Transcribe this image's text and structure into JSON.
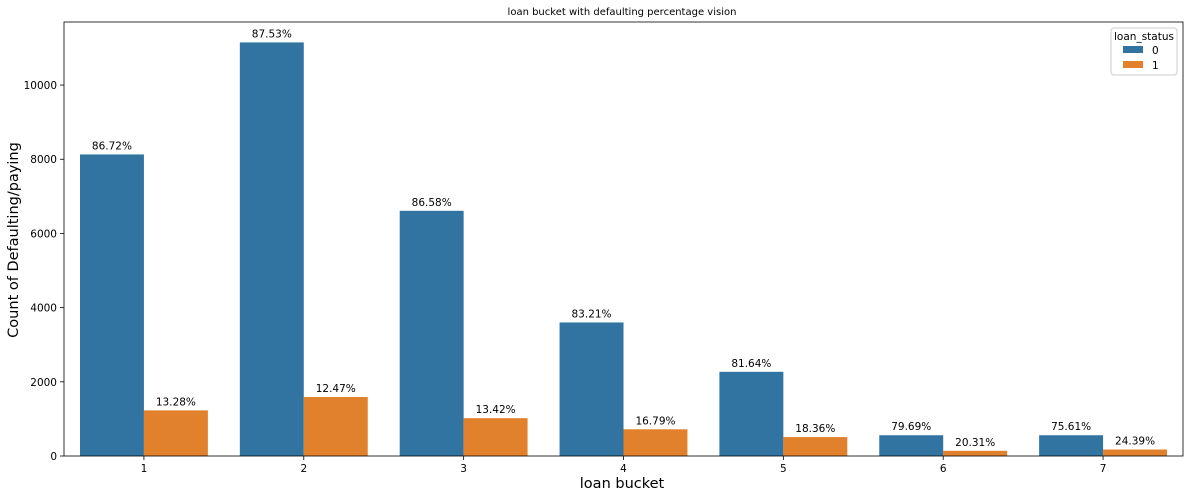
{
  "chart_data": {
    "type": "bar",
    "title": "loan bucket with defaulting percentage vision",
    "xlabel": "loan bucket",
    "ylabel": "Count of Defaulting/paying",
    "categories": [
      "1",
      "2",
      "3",
      "4",
      "5",
      "6",
      "7"
    ],
    "ylim": [
      0,
      11700
    ],
    "yticks": [
      0,
      2000,
      4000,
      6000,
      8000,
      10000
    ],
    "grid": false,
    "legend": {
      "title": "loan_status",
      "placement": "top-right"
    },
    "series": [
      {
        "name": "0",
        "color": "#3274a1",
        "values": [
          8130,
          11150,
          6610,
          3600,
          2270,
          560,
          560
        ],
        "labels": [
          "86.72%",
          "87.53%",
          "86.58%",
          "83.21%",
          "81.64%",
          "79.69%",
          "75.61%"
        ]
      },
      {
        "name": "1",
        "color": "#e1812c",
        "values": [
          1230,
          1590,
          1020,
          720,
          510,
          140,
          175
        ],
        "labels": [
          "13.28%",
          "12.47%",
          "13.42%",
          "16.79%",
          "18.36%",
          "20.31%",
          "24.39%"
        ]
      }
    ]
  }
}
